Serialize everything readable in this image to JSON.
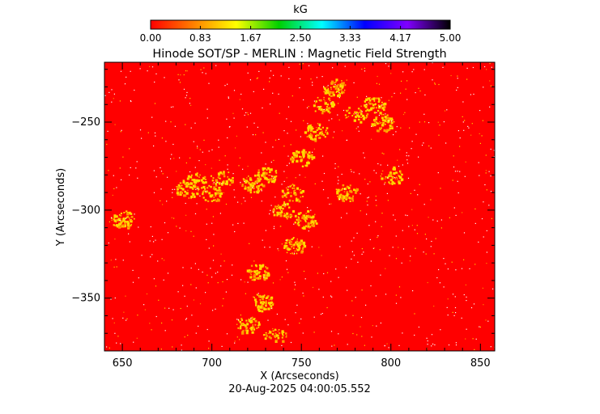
{
  "chart_data": {
    "type": "heatmap",
    "title": "Hinode SOT/SP - MERLIN : Magnetic Field Strength",
    "colorbar": {
      "label": "kG",
      "ticks": [
        "0.00",
        "0.83",
        "1.67",
        "2.50",
        "3.33",
        "4.17",
        "5.00"
      ],
      "range": [
        0,
        5
      ],
      "colors": [
        "#ff0000",
        "#ff8000",
        "#ffff00",
        "#00d000",
        "#00ffff",
        "#0000ff",
        "#8000ff",
        "#000000"
      ]
    },
    "xlabel": "X (Arcseconds)",
    "ylabel": "Y (Arcseconds)",
    "xlim": [
      640,
      858
    ],
    "ylim": [
      -380,
      -216
    ],
    "xticks": [
      650,
      700,
      750,
      800,
      850
    ],
    "yticks": [
      -250,
      -300,
      -350
    ],
    "background_color": "#ff0000",
    "feature_color": "#ffd800",
    "bright_regions_xy_arcsec": [
      [
        762,
        -240
      ],
      [
        768,
        -230
      ],
      [
        758,
        -255
      ],
      [
        780,
        -245
      ],
      [
        790,
        -240
      ],
      [
        795,
        -250
      ],
      [
        750,
        -270
      ],
      [
        745,
        -290
      ],
      [
        752,
        -305
      ],
      [
        740,
        -300
      ],
      [
        730,
        -280
      ],
      [
        722,
        -285
      ],
      [
        705,
        -282
      ],
      [
        700,
        -290
      ],
      [
        686,
        -288
      ],
      [
        690,
        -283
      ],
      [
        745,
        -320
      ],
      [
        725,
        -335
      ],
      [
        728,
        -352
      ],
      [
        720,
        -365
      ],
      [
        735,
        -370
      ],
      [
        775,
        -290
      ],
      [
        800,
        -280
      ],
      [
        650,
        -305
      ]
    ],
    "footer": "20-Aug-2025 04:00:05.552"
  }
}
